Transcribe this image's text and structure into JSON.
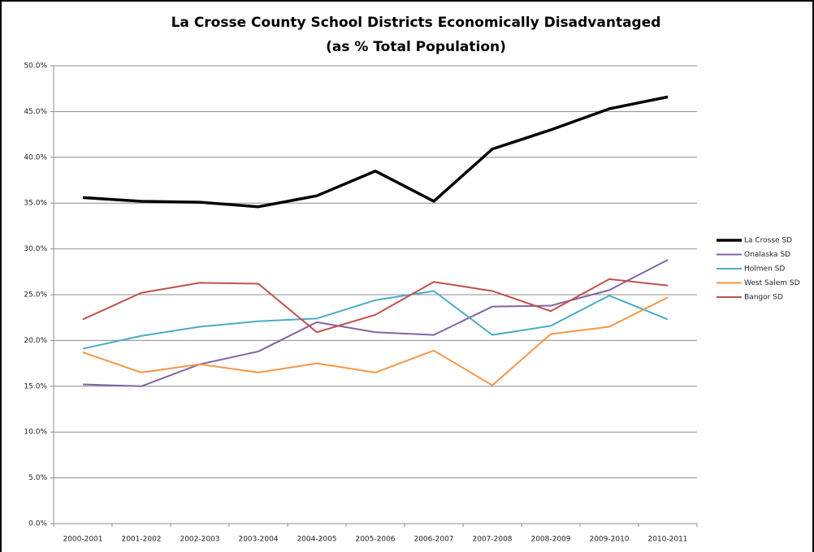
{
  "chart_data": {
    "type": "line",
    "title": "La Crosse County School Districts Economically Disadvantaged",
    "subtitle": "(as % Total Population)",
    "categories": [
      "2000-2001",
      "2001-2002",
      "2002-2003",
      "2003-2004",
      "2004-2005",
      "2005-2006",
      "2006-2007",
      "2007-2008",
      "2008-2009",
      "2009-2010",
      "2010-2011"
    ],
    "series": [
      {
        "name": "La Crosse SD",
        "color": "#000000",
        "values": [
          35.6,
          35.2,
          35.1,
          34.6,
          35.8,
          38.5,
          35.2,
          40.9,
          43.0,
          45.3,
          46.6
        ]
      },
      {
        "name": "Onalaska SD",
        "color": "#8064a2",
        "values": [
          15.2,
          15.0,
          17.4,
          18.8,
          22.0,
          20.9,
          20.6,
          23.7,
          23.8,
          25.5,
          28.8
        ]
      },
      {
        "name": "Holmen SD",
        "color": "#4bacc6",
        "values": [
          19.1,
          20.5,
          21.5,
          22.1,
          22.4,
          24.4,
          25.4,
          20.6,
          21.6,
          24.9,
          22.3
        ]
      },
      {
        "name": "West Salem SD",
        "color": "#f79646",
        "values": [
          18.7,
          16.5,
          17.4,
          16.5,
          17.5,
          16.5,
          18.9,
          15.1,
          20.7,
          21.5,
          24.7
        ]
      },
      {
        "name": "Bangor SD",
        "color": "#c0504d",
        "values": [
          22.3,
          25.2,
          26.3,
          26.2,
          20.9,
          22.8,
          26.4,
          25.4,
          23.2,
          26.7,
          26.0
        ]
      }
    ],
    "ylim": [
      0,
      50
    ],
    "yticks": [
      {
        "value": 0,
        "label": "0.0%"
      },
      {
        "value": 5,
        "label": "5.0%"
      },
      {
        "value": 10,
        "label": "10.0%"
      },
      {
        "value": 15,
        "label": "15.0%"
      },
      {
        "value": 20,
        "label": "20.0%"
      },
      {
        "value": 25,
        "label": "25.0%"
      },
      {
        "value": 30,
        "label": "30.0%"
      },
      {
        "value": 35,
        "label": "35.0%"
      },
      {
        "value": 40,
        "label": "40.0%"
      },
      {
        "value": 45,
        "label": "45.0%"
      },
      {
        "value": 50,
        "label": "50.0%"
      }
    ],
    "grid": true,
    "legend": "right"
  }
}
